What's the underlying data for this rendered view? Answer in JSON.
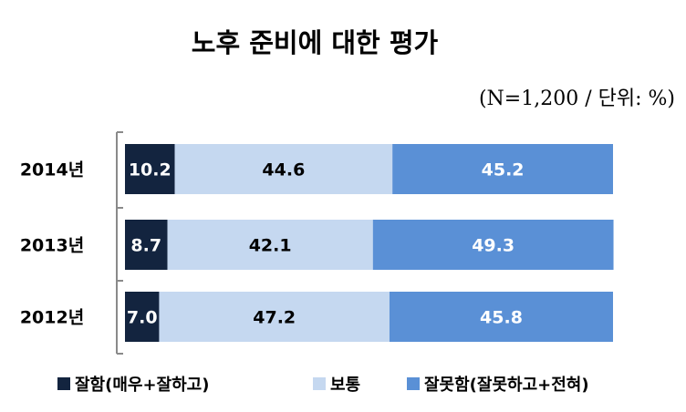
{
  "title": "노후 준비에 대한 평가",
  "subtitle": "(N=1,200 / 단위: %)",
  "colors": {
    "good": "#13243f",
    "normal": "#c5d8f0",
    "bad": "#5a90d6",
    "axis": "#8a8a8a"
  },
  "chart_data": {
    "type": "bar",
    "orientation": "horizontal",
    "stacked": true,
    "categories": [
      "2014년",
      "2013년",
      "2012년"
    ],
    "series": [
      {
        "name": "잘함(매우+잘하고)",
        "values": [
          10.2,
          8.7,
          7.0
        ],
        "labels": [
          "10.2",
          "8.7",
          "7.0"
        ],
        "color": "#13243f",
        "label_color": "#ffffff"
      },
      {
        "name": "보통",
        "values": [
          44.6,
          42.1,
          47.2
        ],
        "labels": [
          "44.6",
          "42.1",
          "47.2"
        ],
        "color": "#c5d8f0",
        "label_color": "#000000"
      },
      {
        "name": "잘못함(잘못하고+전혀)",
        "values": [
          45.2,
          49.3,
          45.8
        ],
        "labels": [
          "45.2",
          "49.3",
          "45.8"
        ],
        "color": "#5a90d6",
        "label_color": "#ffffff"
      }
    ],
    "xlim": [
      0,
      100
    ],
    "grid": false,
    "legend": "bottom"
  }
}
